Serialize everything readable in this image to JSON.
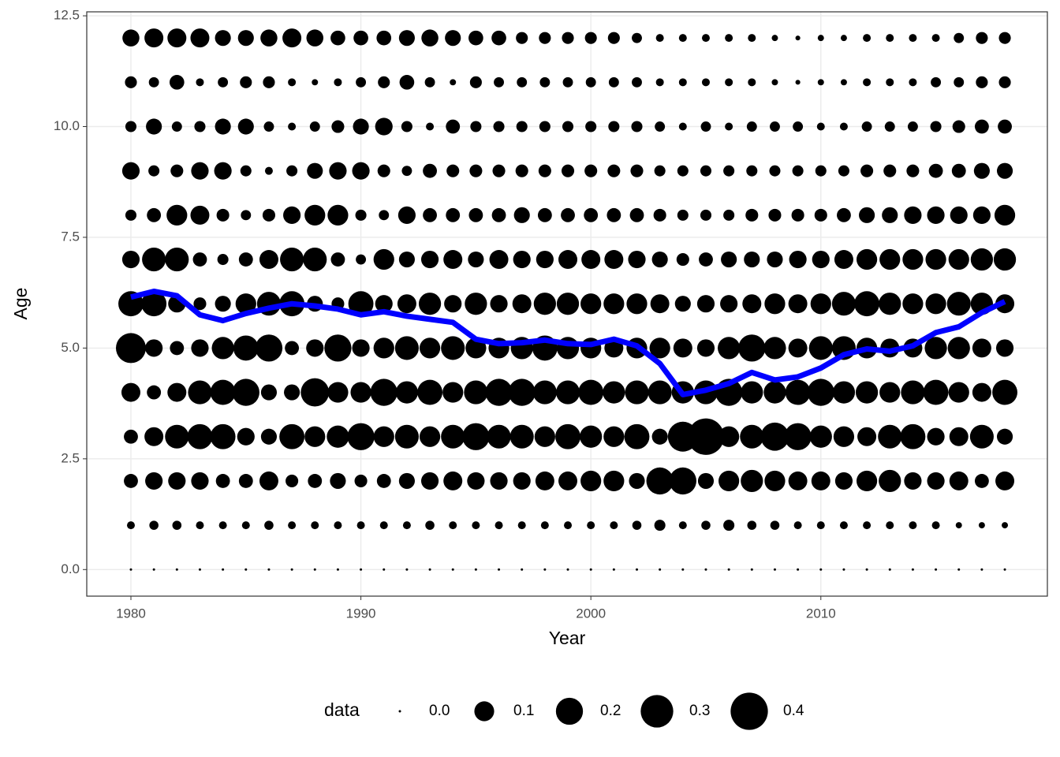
{
  "chart_data": {
    "type": "bubble",
    "x_label": "Year",
    "y_label": "Age",
    "xlim": [
      1978.08,
      2019.85
    ],
    "ylim": [
      -0.6,
      12.59
    ],
    "xticks": [
      1980,
      1990,
      2000,
      2010
    ],
    "yticks": [
      {
        "value": 0,
        "label": "0.0"
      },
      {
        "value": 2.5,
        "label": "2.5"
      },
      {
        "value": 5,
        "label": "5.0"
      },
      {
        "value": 7.5,
        "label": "7.5"
      },
      {
        "value": 10,
        "label": "10.0"
      },
      {
        "value": 12.5,
        "label": "12.5"
      }
    ],
    "grid": true,
    "point_color": "#000000",
    "x": [
      1980,
      1981,
      1982,
      1983,
      1984,
      1985,
      1986,
      1987,
      1988,
      1989,
      1990,
      1991,
      1992,
      1993,
      1994,
      1995,
      1996,
      1997,
      1998,
      1999,
      2000,
      2001,
      2002,
      2003,
      2004,
      2005,
      2006,
      2007,
      2008,
      2009,
      2010,
      2011,
      2012,
      2013,
      2014,
      2015,
      2016,
      2017,
      2018
    ],
    "ages": [
      0,
      1,
      2,
      3,
      4,
      5,
      6,
      7,
      8,
      9,
      10,
      11,
      12
    ],
    "sizes": [
      [
        0,
        0,
        0,
        0,
        0,
        0,
        0,
        0,
        0,
        0,
        0,
        0,
        0,
        0,
        0,
        0,
        0,
        0,
        0,
        0,
        0,
        0,
        0,
        0,
        0,
        0,
        0,
        0,
        0,
        0,
        0,
        0,
        0,
        0,
        0,
        0,
        0,
        0,
        0
      ],
      [
        0.01,
        0.015,
        0.015,
        0.01,
        0.01,
        0.01,
        0.015,
        0.01,
        0.01,
        0.01,
        0.01,
        0.01,
        0.01,
        0.015,
        0.01,
        0.01,
        0.01,
        0.01,
        0.01,
        0.01,
        0.01,
        0.01,
        0.015,
        0.025,
        0.01,
        0.015,
        0.025,
        0.015,
        0.015,
        0.01,
        0.01,
        0.01,
        0.01,
        0.01,
        0.01,
        0.01,
        0.005,
        0.005,
        0.005
      ],
      [
        0.045,
        0.075,
        0.075,
        0.075,
        0.045,
        0.045,
        0.09,
        0.035,
        0.045,
        0.06,
        0.035,
        0.045,
        0.06,
        0.075,
        0.09,
        0.075,
        0.075,
        0.075,
        0.09,
        0.09,
        0.11,
        0.11,
        0.06,
        0.2,
        0.2,
        0.06,
        0.11,
        0.13,
        0.11,
        0.09,
        0.09,
        0.075,
        0.11,
        0.13,
        0.075,
        0.075,
        0.09,
        0.045,
        0.09
      ],
      [
        0.045,
        0.09,
        0.15,
        0.17,
        0.17,
        0.075,
        0.06,
        0.17,
        0.11,
        0.13,
        0.2,
        0.11,
        0.15,
        0.11,
        0.15,
        0.2,
        0.15,
        0.15,
        0.11,
        0.17,
        0.13,
        0.11,
        0.17,
        0.06,
        0.25,
        0.38,
        0.11,
        0.15,
        0.22,
        0.2,
        0.13,
        0.11,
        0.09,
        0.15,
        0.17,
        0.075,
        0.09,
        0.15,
        0.06
      ],
      [
        0.09,
        0.045,
        0.09,
        0.15,
        0.17,
        0.2,
        0.06,
        0.06,
        0.22,
        0.11,
        0.11,
        0.2,
        0.13,
        0.17,
        0.11,
        0.15,
        0.2,
        0.2,
        0.15,
        0.15,
        0.17,
        0.13,
        0.15,
        0.15,
        0.13,
        0.15,
        0.2,
        0.13,
        0.13,
        0.17,
        0.2,
        0.13,
        0.13,
        0.11,
        0.15,
        0.17,
        0.11,
        0.09,
        0.17
      ],
      [
        0.25,
        0.075,
        0.045,
        0.075,
        0.13,
        0.17,
        0.2,
        0.045,
        0.075,
        0.2,
        0.075,
        0.11,
        0.15,
        0.11,
        0.15,
        0.11,
        0.11,
        0.13,
        0.17,
        0.13,
        0.11,
        0.09,
        0.11,
        0.11,
        0.09,
        0.075,
        0.13,
        0.2,
        0.13,
        0.09,
        0.15,
        0.15,
        0.11,
        0.09,
        0.09,
        0.13,
        0.13,
        0.09,
        0.075
      ],
      [
        0.17,
        0.17,
        0.075,
        0.035,
        0.06,
        0.11,
        0.15,
        0.17,
        0.06,
        0.035,
        0.17,
        0.075,
        0.09,
        0.13,
        0.075,
        0.13,
        0.075,
        0.09,
        0.13,
        0.13,
        0.11,
        0.11,
        0.11,
        0.09,
        0.06,
        0.075,
        0.075,
        0.09,
        0.11,
        0.09,
        0.11,
        0.15,
        0.17,
        0.13,
        0.11,
        0.11,
        0.15,
        0.13,
        0.09
      ],
      [
        0.075,
        0.15,
        0.15,
        0.045,
        0.025,
        0.045,
        0.09,
        0.15,
        0.15,
        0.045,
        0.02,
        0.11,
        0.06,
        0.075,
        0.09,
        0.06,
        0.09,
        0.075,
        0.075,
        0.09,
        0.09,
        0.09,
        0.075,
        0.06,
        0.035,
        0.045,
        0.06,
        0.06,
        0.06,
        0.075,
        0.075,
        0.09,
        0.11,
        0.11,
        0.11,
        0.11,
        0.11,
        0.13,
        0.13
      ],
      [
        0.025,
        0.045,
        0.11,
        0.09,
        0.035,
        0.02,
        0.035,
        0.075,
        0.11,
        0.11,
        0.025,
        0.02,
        0.075,
        0.045,
        0.045,
        0.045,
        0.045,
        0.06,
        0.045,
        0.045,
        0.045,
        0.045,
        0.045,
        0.035,
        0.025,
        0.025,
        0.025,
        0.035,
        0.035,
        0.035,
        0.035,
        0.045,
        0.06,
        0.06,
        0.075,
        0.075,
        0.075,
        0.075,
        0.11
      ],
      [
        0.075,
        0.025,
        0.035,
        0.075,
        0.075,
        0.025,
        0.01,
        0.025,
        0.06,
        0.075,
        0.075,
        0.035,
        0.02,
        0.045,
        0.035,
        0.035,
        0.035,
        0.035,
        0.035,
        0.035,
        0.035,
        0.035,
        0.035,
        0.025,
        0.025,
        0.025,
        0.025,
        0.025,
        0.025,
        0.025,
        0.025,
        0.025,
        0.035,
        0.035,
        0.035,
        0.045,
        0.045,
        0.06,
        0.06
      ],
      [
        0.025,
        0.06,
        0.02,
        0.025,
        0.06,
        0.06,
        0.02,
        0.01,
        0.02,
        0.035,
        0.06,
        0.075,
        0.025,
        0.01,
        0.045,
        0.025,
        0.025,
        0.025,
        0.025,
        0.025,
        0.025,
        0.025,
        0.025,
        0.02,
        0.01,
        0.02,
        0.01,
        0.02,
        0.02,
        0.02,
        0.01,
        0.01,
        0.02,
        0.02,
        0.02,
        0.025,
        0.035,
        0.045,
        0.045
      ],
      [
        0.03,
        0.02,
        0.05,
        0.01,
        0.02,
        0.03,
        0.03,
        0.01,
        0.005,
        0.01,
        0.02,
        0.03,
        0.05,
        0.02,
        0.005,
        0.03,
        0.02,
        0.02,
        0.02,
        0.02,
        0.02,
        0.02,
        0.02,
        0.01,
        0.01,
        0.01,
        0.01,
        0.01,
        0.005,
        0.002,
        0.005,
        0.005,
        0.01,
        0.01,
        0.01,
        0.02,
        0.02,
        0.03,
        0.03
      ],
      [
        0.07,
        0.09,
        0.09,
        0.09,
        0.06,
        0.06,
        0.07,
        0.09,
        0.07,
        0.05,
        0.05,
        0.05,
        0.06,
        0.07,
        0.06,
        0.05,
        0.05,
        0.03,
        0.03,
        0.03,
        0.03,
        0.03,
        0.02,
        0.01,
        0.01,
        0.01,
        0.01,
        0.01,
        0.005,
        0.002,
        0.005,
        0.005,
        0.01,
        0.01,
        0.01,
        0.01,
        0.02,
        0.03,
        0.03
      ]
    ],
    "line": {
      "color": "#0000ff",
      "values": [
        6.15,
        6.28,
        6.18,
        5.75,
        5.62,
        5.78,
        5.9,
        6.0,
        5.95,
        5.88,
        5.75,
        5.82,
        5.72,
        5.65,
        5.58,
        5.2,
        5.1,
        5.12,
        5.18,
        5.1,
        5.08,
        5.2,
        5.05,
        4.65,
        3.95,
        4.05,
        4.2,
        4.45,
        4.28,
        4.35,
        4.55,
        4.85,
        4.98,
        4.93,
        5.05,
        5.35,
        5.48,
        5.8,
        6.05
      ]
    },
    "size_legend": {
      "title": "data",
      "values": [
        {
          "value": 0,
          "label": "0.0"
        },
        {
          "value": 0.1,
          "label": "0.1"
        },
        {
          "value": 0.2,
          "label": "0.2"
        },
        {
          "value": 0.3,
          "label": "0.3"
        },
        {
          "value": 0.4,
          "label": "0.4"
        }
      ]
    }
  }
}
